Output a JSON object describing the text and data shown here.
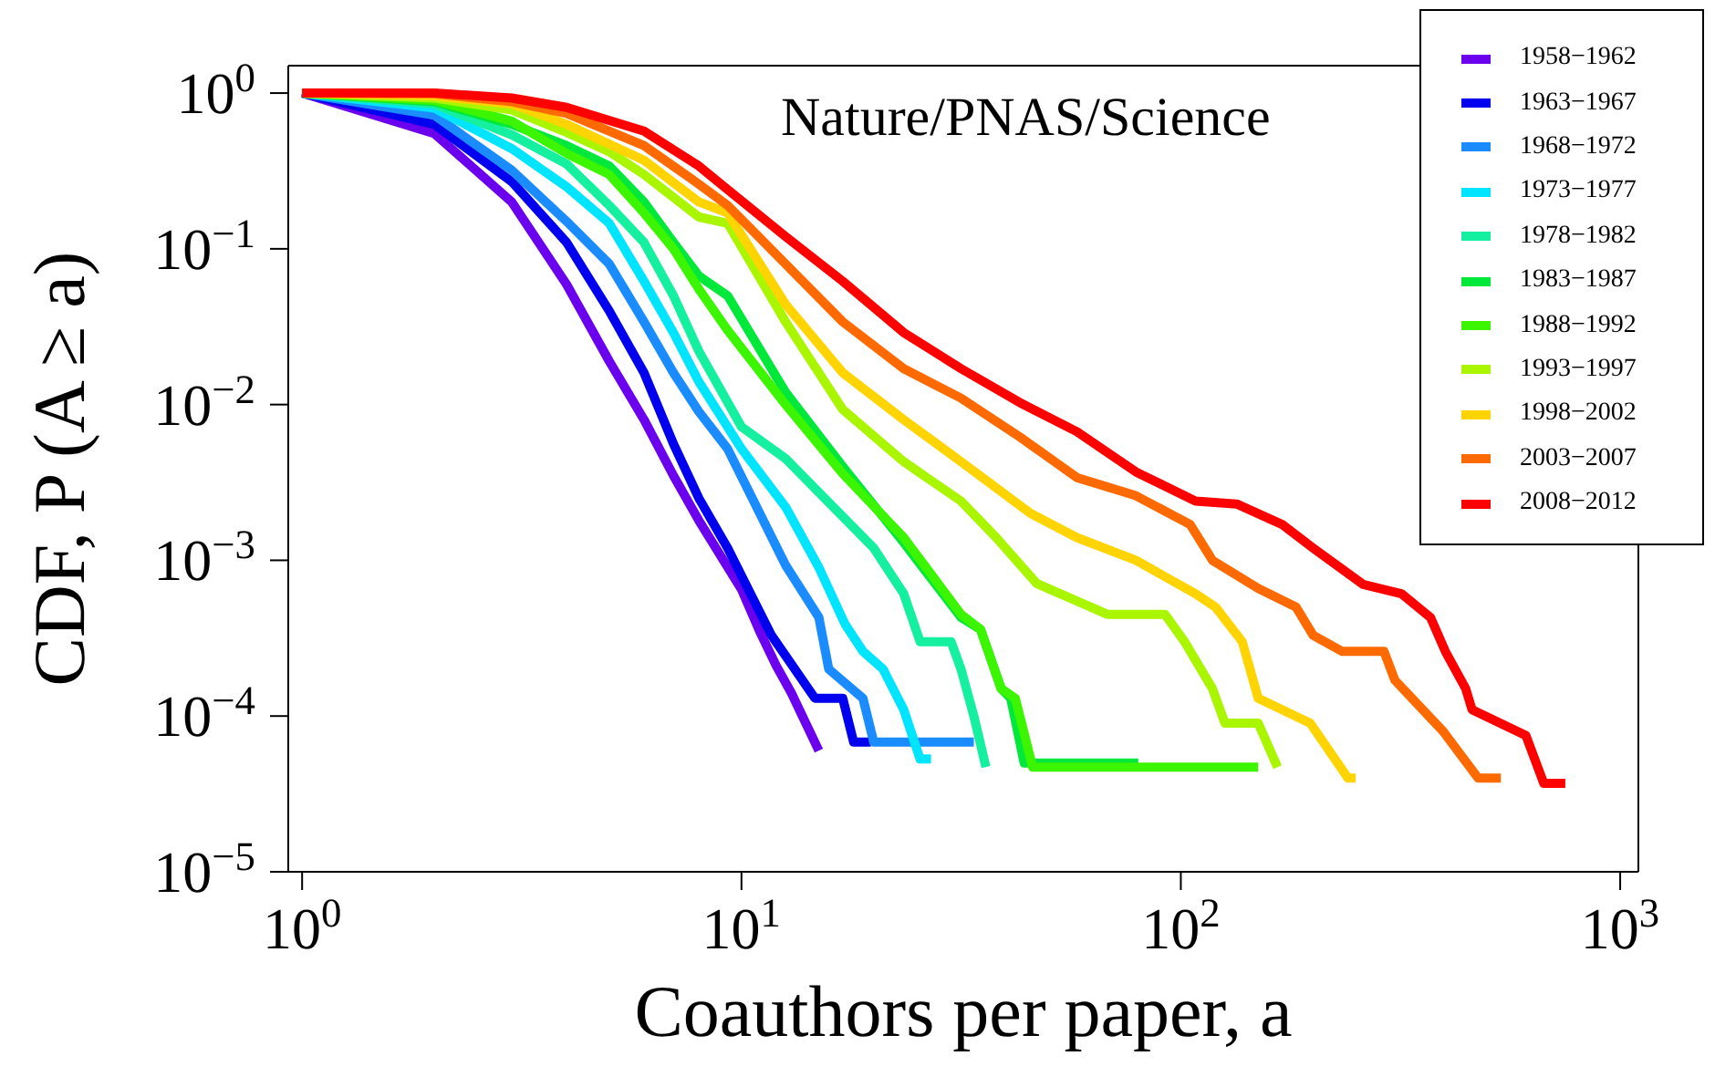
{
  "chart_data": {
    "type": "line",
    "xlabel": "Coauthors per paper, a",
    "ylabel": "CDF, P (A ≥ a)",
    "annotations": [
      "Nature/PNAS/Science"
    ],
    "log": "xy",
    "xlim": [
      0.93,
      1100
    ],
    "ylim": [
      1e-05,
      1.5
    ],
    "xticks": [
      {
        "value": 1,
        "label": "10$^{0}$"
      },
      {
        "value": 10,
        "label": "10$^{1}$"
      },
      {
        "value": 100,
        "label": "10$^{2}$"
      },
      {
        "value": 1000,
        "label": "10$^{3}$"
      }
    ],
    "yticks": [
      {
        "value": 1e-05,
        "label": "10$^{−5}$"
      },
      {
        "value": 0.0001,
        "label": "10$^{−4}$"
      },
      {
        "value": 0.001,
        "label": "10$^{−3}$"
      },
      {
        "value": 0.01,
        "label": "10$^{−2}$"
      },
      {
        "value": 0.1,
        "label": "10$^{−1}$"
      },
      {
        "value": 1,
        "label": "10$^{0}$"
      }
    ],
    "grid": false,
    "legend": "top right",
    "marker": "none",
    "line_style": "solid",
    "series": [
      {
        "name": "1958−1962",
        "color": "#6a00ee",
        "x": [
          1,
          2,
          3,
          4,
          5,
          6,
          7,
          8,
          10,
          11,
          12,
          13,
          15
        ],
        "values": [
          1,
          0.55,
          0.2,
          0.059,
          0.019,
          0.008,
          0.0035,
          0.0018,
          0.00065,
          0.00035,
          0.00021,
          0.00014,
          6e-05
        ]
      },
      {
        "name": "1963−1967",
        "color": "#0000ee",
        "x": [
          1,
          2,
          3,
          4,
          5,
          6,
          7,
          8,
          9.3,
          11.7,
          14.7,
          17,
          18,
          19.7
        ],
        "values": [
          1,
          0.63,
          0.27,
          0.11,
          0.04,
          0.016,
          0.0056,
          0.0025,
          0.0012,
          0.00033,
          0.00013,
          0.00013,
          6.8e-05,
          6.8e-05
        ]
      },
      {
        "name": "1968−1972",
        "color": "#1a8cff",
        "x": [
          1,
          2,
          3,
          4,
          5,
          6,
          7,
          8,
          9.3,
          12.6,
          15,
          15.8,
          18.9,
          20,
          33.8
        ],
        "values": [
          1,
          0.72,
          0.32,
          0.15,
          0.08,
          0.034,
          0.016,
          0.009,
          0.0052,
          0.00093,
          0.00043,
          0.0002,
          0.00013,
          6.8e-05,
          6.8e-05
        ]
      },
      {
        "name": "1973−1977",
        "color": "#00e5ff",
        "x": [
          1,
          2,
          3,
          4,
          5,
          6,
          7,
          8,
          10,
          12.6,
          15,
          17.2,
          18.9,
          21,
          23.4,
          25.5,
          27
        ],
        "values": [
          1,
          0.8,
          0.44,
          0.25,
          0.146,
          0.062,
          0.029,
          0.014,
          0.0052,
          0.0022,
          0.0009,
          0.00039,
          0.00026,
          0.0002,
          0.00011,
          5.3e-05,
          5.3e-05
        ]
      },
      {
        "name": "1978−1982",
        "color": "#14f0a0",
        "x": [
          1,
          2,
          3,
          4,
          5,
          6,
          7,
          8,
          10,
          12.6,
          20,
          23.4,
          25.5,
          30,
          31.6,
          33.8,
          36
        ],
        "values": [
          1,
          0.85,
          0.54,
          0.35,
          0.19,
          0.11,
          0.05,
          0.022,
          0.0072,
          0.0045,
          0.0012,
          0.00061,
          0.0003,
          0.0003,
          0.0002,
          0.0001,
          4.7e-05
        ]
      },
      {
        "name": "1983−1987",
        "color": "#00e83a",
        "x": [
          1,
          2,
          3,
          4,
          5,
          6,
          7,
          8,
          9.3,
          12.6,
          17,
          23.4,
          31.6,
          35,
          39,
          41,
          44,
          80
        ],
        "values": [
          1,
          0.88,
          0.63,
          0.46,
          0.34,
          0.2,
          0.11,
          0.067,
          0.05,
          0.012,
          0.004,
          0.0013,
          0.00043,
          0.00036,
          0.00015,
          0.00013,
          5e-05,
          5e-05
        ]
      },
      {
        "name": "1988−1992",
        "color": "#3cf500",
        "x": [
          1,
          2,
          3,
          4,
          5,
          6,
          7,
          8,
          9.3,
          12.6,
          17,
          23.4,
          31.6,
          35,
          39,
          42,
          46,
          150
        ],
        "values": [
          1,
          0.9,
          0.66,
          0.41,
          0.3,
          0.17,
          0.1,
          0.055,
          0.03,
          0.01,
          0.0036,
          0.0014,
          0.00045,
          0.00036,
          0.00015,
          0.00013,
          4.7e-05,
          4.7e-05
        ]
      },
      {
        "name": "1993−1997",
        "color": "#aaf500",
        "x": [
          1,
          2,
          3,
          4,
          5,
          6,
          8,
          9.3,
          12.6,
          17,
          23.4,
          31.6,
          38,
          47,
          68,
          92,
          102,
          118,
          126,
          150,
          166
        ],
        "values": [
          1,
          0.93,
          0.78,
          0.56,
          0.42,
          0.3,
          0.16,
          0.146,
          0.034,
          0.0093,
          0.0043,
          0.0024,
          0.0014,
          0.00071,
          0.00045,
          0.00045,
          0.0003,
          0.00015,
          9e-05,
          9e-05,
          4.7e-05
        ]
      },
      {
        "name": "1998−2002",
        "color": "#ffd400",
        "x": [
          1,
          2,
          3,
          4,
          6,
          8,
          9.3,
          12.6,
          17,
          23.4,
          31.6,
          45.5,
          58,
          79,
          108,
          120,
          138,
          150,
          197,
          240,
          250
        ],
        "values": [
          1,
          0.96,
          0.85,
          0.63,
          0.37,
          0.2,
          0.17,
          0.044,
          0.016,
          0.008,
          0.0043,
          0.002,
          0.0014,
          0.001,
          0.00061,
          0.0005,
          0.0003,
          0.00013,
          9e-05,
          4e-05,
          4e-05
        ]
      },
      {
        "name": "2003−2007",
        "color": "#ff6a00",
        "x": [
          1,
          2,
          3,
          4,
          6,
          8,
          9.3,
          12.6,
          17,
          23.4,
          31.6,
          43,
          58,
          79,
          105,
          118,
          150,
          183,
          200,
          233,
          290,
          307,
          395,
          475,
          535
        ],
        "values": [
          1,
          0.99,
          0.88,
          0.74,
          0.46,
          0.26,
          0.19,
          0.08,
          0.034,
          0.017,
          0.011,
          0.0062,
          0.0034,
          0.0026,
          0.0017,
          0.001,
          0.00066,
          0.0005,
          0.00033,
          0.00026,
          0.00026,
          0.00017,
          8e-05,
          4e-05,
          4e-05
        ]
      },
      {
        "name": "2008−2012",
        "color": "#ff0000",
        "x": [
          1,
          2,
          3,
          4,
          6,
          8,
          9.3,
          12.6,
          17,
          23.4,
          31.6,
          43,
          58,
          79,
          108,
          134,
          170,
          200,
          260,
          318,
          370,
          400,
          445,
          460,
          610,
          670,
          750
        ],
        "values": [
          1,
          1,
          0.93,
          0.81,
          0.57,
          0.34,
          0.24,
          0.12,
          0.062,
          0.029,
          0.017,
          0.0103,
          0.0067,
          0.0037,
          0.0024,
          0.0023,
          0.0017,
          0.0012,
          0.0007,
          0.00061,
          0.00043,
          0.00026,
          0.00015,
          0.00011,
          7.5e-05,
          3.7e-05,
          3.7e-05
        ]
      }
    ]
  }
}
